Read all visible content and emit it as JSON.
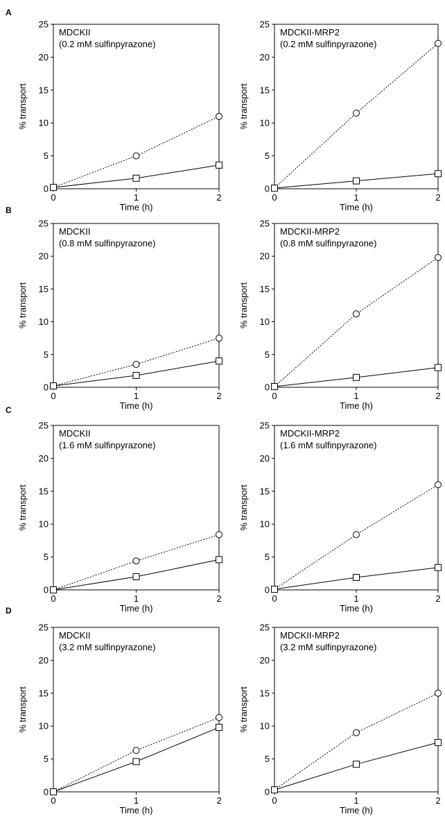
{
  "figure": {
    "panel_letters": [
      "A",
      "B",
      "C",
      "D"
    ]
  },
  "chart_data": [
    {
      "type": "line",
      "panel": "A",
      "title": "MDCKII",
      "subtitle": "(0.2 mM sulfinpyrazone)",
      "xlabel": "Time (h)",
      "ylabel": "% transport",
      "x": [
        0,
        1,
        2
      ],
      "xticks": [
        0,
        1,
        2
      ],
      "xlim": [
        0,
        2
      ],
      "ylim": [
        0,
        25
      ],
      "yticks": [
        0,
        5,
        10,
        15,
        20,
        25
      ],
      "grid": false,
      "series": [
        {
          "marker": "circle",
          "line": "dotted",
          "values": [
            0.2,
            5.0,
            11.0
          ]
        },
        {
          "marker": "square",
          "line": "solid",
          "values": [
            0.2,
            1.6,
            3.6
          ]
        }
      ]
    },
    {
      "type": "line",
      "panel": "A",
      "title": "MDCKII-MRP2",
      "subtitle": "(0.2 mM sulfinpyrazone)",
      "xlabel": "Time (h)",
      "ylabel": "% transport",
      "x": [
        0,
        1,
        2
      ],
      "xticks": [
        0,
        1,
        2
      ],
      "xlim": [
        0,
        2
      ],
      "ylim": [
        0,
        25
      ],
      "yticks": [
        0,
        5,
        10,
        15,
        20,
        25
      ],
      "grid": false,
      "series": [
        {
          "marker": "circle",
          "line": "dotted",
          "values": [
            0.1,
            11.5,
            22.1
          ]
        },
        {
          "marker": "square",
          "line": "solid",
          "values": [
            0.1,
            1.2,
            2.3
          ]
        }
      ]
    },
    {
      "type": "line",
      "panel": "B",
      "title": "MDCKII",
      "subtitle": "(0.8 mM sulfinpyrazone)",
      "xlabel": "Time (h)",
      "ylabel": "% transport",
      "x": [
        0,
        1,
        2
      ],
      "xticks": [
        0,
        1,
        2
      ],
      "xlim": [
        0,
        2
      ],
      "ylim": [
        0,
        25
      ],
      "yticks": [
        0,
        5,
        10,
        15,
        20,
        25
      ],
      "grid": false,
      "series": [
        {
          "marker": "circle",
          "line": "dotted",
          "values": [
            0.2,
            3.5,
            7.5
          ]
        },
        {
          "marker": "square",
          "line": "solid",
          "values": [
            0.2,
            1.8,
            4.0
          ]
        }
      ]
    },
    {
      "type": "line",
      "panel": "B",
      "title": "MDCKII-MRP2",
      "subtitle": "(0.8 mM sulfinpyrazone)",
      "xlabel": "Time (h)",
      "ylabel": "% transport",
      "x": [
        0,
        1,
        2
      ],
      "xticks": [
        0,
        1,
        2
      ],
      "xlim": [
        0,
        2
      ],
      "ylim": [
        0,
        25
      ],
      "yticks": [
        0,
        5,
        10,
        15,
        20,
        25
      ],
      "grid": false,
      "series": [
        {
          "marker": "circle",
          "line": "dotted",
          "values": [
            0.1,
            11.2,
            19.8
          ]
        },
        {
          "marker": "square",
          "line": "solid",
          "values": [
            0.1,
            1.5,
            3.0
          ]
        }
      ]
    },
    {
      "type": "line",
      "panel": "C",
      "title": "MDCKII",
      "subtitle": "(1.6 mM sulfinpyrazone)",
      "xlabel": "Time (h)",
      "ylabel": "% transport",
      "x": [
        0,
        1,
        2
      ],
      "xticks": [
        0,
        1,
        2
      ],
      "xlim": [
        0,
        2
      ],
      "ylim": [
        0,
        25
      ],
      "yticks": [
        0,
        5,
        10,
        15,
        20,
        25
      ],
      "grid": false,
      "series": [
        {
          "marker": "circle",
          "line": "dotted",
          "values": [
            0.0,
            4.4,
            8.4
          ]
        },
        {
          "marker": "square",
          "line": "solid",
          "values": [
            0.0,
            2.0,
            4.6
          ]
        }
      ]
    },
    {
      "type": "line",
      "panel": "C",
      "title": "MDCKII-MRP2",
      "subtitle": "(1.6 mM sulfinpyrazone)",
      "xlabel": "Time (h)",
      "ylabel": "% transport",
      "x": [
        0,
        1,
        2
      ],
      "xticks": [
        0,
        1,
        2
      ],
      "xlim": [
        0,
        2
      ],
      "ylim": [
        0,
        25
      ],
      "yticks": [
        0,
        5,
        10,
        15,
        20,
        25
      ],
      "grid": false,
      "series": [
        {
          "marker": "circle",
          "line": "dotted",
          "values": [
            0.1,
            8.4,
            16.0
          ]
        },
        {
          "marker": "square",
          "line": "solid",
          "values": [
            0.1,
            1.9,
            3.4
          ]
        }
      ]
    },
    {
      "type": "line",
      "panel": "D",
      "title": "MDCKII",
      "subtitle": "(3.2 mM sulfinpyrazone)",
      "xlabel": "Time (h)",
      "ylabel": "% transport",
      "x": [
        0,
        1,
        2
      ],
      "xticks": [
        0,
        1,
        2
      ],
      "xlim": [
        0,
        2
      ],
      "ylim": [
        0,
        25
      ],
      "yticks": [
        0,
        5,
        10,
        15,
        20,
        25
      ],
      "grid": false,
      "series": [
        {
          "marker": "circle",
          "line": "dotted",
          "values": [
            0.0,
            6.3,
            11.3
          ]
        },
        {
          "marker": "square",
          "line": "solid",
          "values": [
            0.0,
            4.6,
            9.8
          ]
        }
      ]
    },
    {
      "type": "line",
      "panel": "D",
      "title": "MDCKII-MRP2",
      "subtitle": "(3.2 mM sulfinpyrazone)",
      "xlabel": "Time (h)",
      "ylabel": "% transport",
      "x": [
        0,
        1,
        2
      ],
      "xticks": [
        0,
        1,
        2
      ],
      "xlim": [
        0,
        2
      ],
      "ylim": [
        0,
        25
      ],
      "yticks": [
        0,
        5,
        10,
        15,
        20,
        25
      ],
      "grid": false,
      "series": [
        {
          "marker": "circle",
          "line": "dotted",
          "values": [
            0.3,
            9.0,
            15.0
          ]
        },
        {
          "marker": "square",
          "line": "solid",
          "values": [
            0.3,
            4.2,
            7.5
          ]
        }
      ]
    }
  ]
}
